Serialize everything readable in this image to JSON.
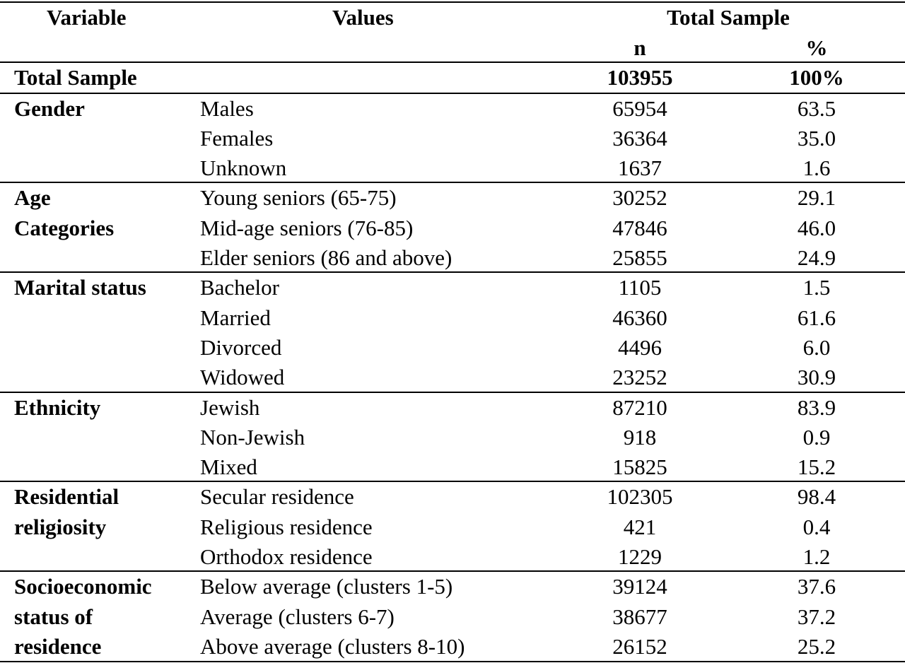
{
  "header": {
    "variable": "Variable",
    "values": "Values",
    "total_sample": "Total Sample",
    "n": "n",
    "percent": "%"
  },
  "total_row": {
    "label": "Total Sample",
    "n": "103955",
    "percent": "100%"
  },
  "groups": [
    {
      "label_lines": [
        "Gender"
      ],
      "rows": [
        {
          "value": "Males",
          "n": "65954",
          "percent": "63.5"
        },
        {
          "value": "Females",
          "n": "36364",
          "percent": "35.0"
        },
        {
          "value": "Unknown",
          "n": "1637",
          "percent": "1.6"
        }
      ]
    },
    {
      "label_lines": [
        "Age",
        "Categories"
      ],
      "rows": [
        {
          "value": "Young seniors (65-75)",
          "n": "30252",
          "percent": "29.1"
        },
        {
          "value": "Mid-age seniors (76-85)",
          "n": "47846",
          "percent": "46.0"
        },
        {
          "value": "Elder seniors (86 and above)",
          "n": "25855",
          "percent": "24.9"
        }
      ]
    },
    {
      "label_lines": [
        "Marital status"
      ],
      "rows": [
        {
          "value": "Bachelor",
          "n": "1105",
          "percent": "1.5"
        },
        {
          "value": "Married",
          "n": "46360",
          "percent": "61.6"
        },
        {
          "value": "Divorced",
          "n": "4496",
          "percent": "6.0"
        },
        {
          "value": "Widowed",
          "n": "23252",
          "percent": "30.9"
        }
      ]
    },
    {
      "label_lines": [
        "Ethnicity"
      ],
      "rows": [
        {
          "value": "Jewish",
          "n": "87210",
          "percent": "83.9"
        },
        {
          "value": "Non-Jewish",
          "n": "918",
          "percent": "0.9"
        },
        {
          "value": "Mixed",
          "n": "15825",
          "percent": "15.2"
        }
      ]
    },
    {
      "label_lines": [
        "Residential",
        "religiosity"
      ],
      "rows": [
        {
          "value": "Secular residence",
          "n": "102305",
          "percent": "98.4"
        },
        {
          "value": "Religious residence",
          "n": "421",
          "percent": "0.4"
        },
        {
          "value": "Orthodox residence",
          "n": "1229",
          "percent": "1.2"
        }
      ]
    },
    {
      "label_lines": [
        "Socioeconomic",
        "status of",
        "residence"
      ],
      "rows": [
        {
          "value": "Below average (clusters 1-5)",
          "n": "39124",
          "percent": "37.6"
        },
        {
          "value": "Average (clusters 6-7)",
          "n": "38677",
          "percent": "37.2"
        },
        {
          "value": "Above average (clusters 8-10)",
          "n": "26152",
          "percent": "25.2"
        }
      ]
    }
  ]
}
